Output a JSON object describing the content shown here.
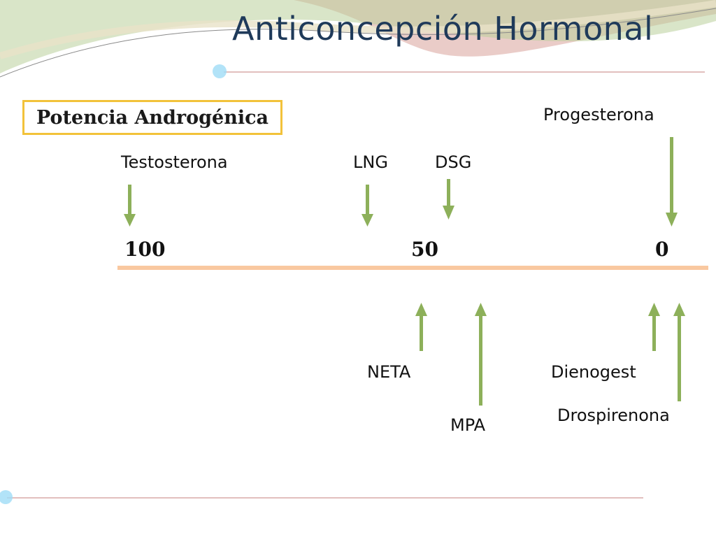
{
  "slide": {
    "title": "Anticoncepción Hormonal",
    "box_label": "Potencia Androgénica",
    "scale": {
      "ticks": [
        "100",
        "50",
        "0"
      ]
    },
    "top_labels": {
      "testosterona": "Testosterona",
      "lng": "LNG",
      "dsg": "DSG",
      "progesterona": "Progesterona"
    },
    "bottom_labels": {
      "neta": "NETA",
      "mpa": "MPA",
      "dienogest": "Dienogest",
      "drospirenona": "Drospirenona"
    }
  },
  "colors": {
    "axis": "#f9c8a0",
    "arrow": "#8db05a",
    "box_border": "#f2c23a",
    "title": "#1f3a5a"
  }
}
